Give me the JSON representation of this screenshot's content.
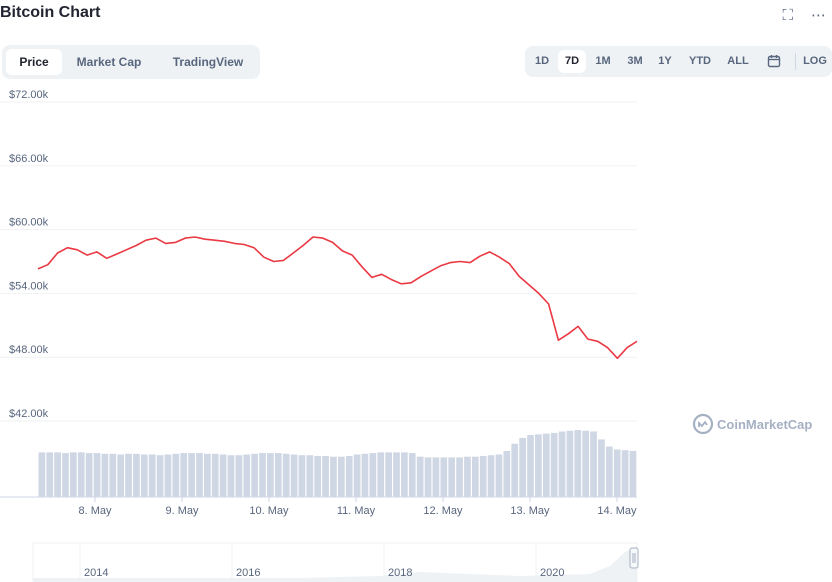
{
  "header": {
    "title": "Bitcoin Chart",
    "icons": [
      "fullscreen-icon",
      "more-icon"
    ]
  },
  "tabs": [
    {
      "label": "Price",
      "active": true
    },
    {
      "label": "Market Cap",
      "active": false
    },
    {
      "label": "TradingView",
      "active": false
    }
  ],
  "ranges": [
    {
      "label": "1D",
      "active": false
    },
    {
      "label": "7D",
      "active": true
    },
    {
      "label": "1M",
      "active": false
    },
    {
      "label": "3M",
      "active": false
    },
    {
      "label": "1Y",
      "active": false
    },
    {
      "label": "YTD",
      "active": false
    },
    {
      "label": "ALL",
      "active": false
    }
  ],
  "calendar_icon": "calendar-icon",
  "log_label": "LOG",
  "watermark": "CoinMarketCap",
  "colors": {
    "line": "#ea3943",
    "volume": "#cfd6e4",
    "grid": "#eff2f5",
    "axis_text": "#58667e"
  },
  "chart_data": {
    "type": "line",
    "series": [
      {
        "x": [
          "7 May 00:00",
          "7 May 03:00",
          "7 May 06:00",
          "7 May 09:00",
          "7 May 12:00",
          "7 May 15:00",
          "7 May 18:00",
          "7 May 21:00",
          "8 May 00:00",
          "8 May 03:00",
          "8 May 06:00",
          "8 May 09:00",
          "8 May 12:00",
          "8 May 15:00",
          "8 May 18:00",
          "8 May 21:00",
          "9 May 00:00",
          "9 May 03:00",
          "9 May 06:00",
          "9 May 09:00",
          "9 May 12:00",
          "9 May 15:00",
          "9 May 18:00",
          "9 May 21:00",
          "10 May 00:00",
          "10 May 03:00",
          "10 May 06:00",
          "10 May 09:00",
          "10 May 12:00",
          "10 May 15:00",
          "10 May 18:00",
          "10 May 21:00",
          "11 May 00:00",
          "11 May 03:00",
          "11 May 06:00",
          "11 May 09:00",
          "11 May 12:00",
          "11 May 15:00",
          "11 May 18:00",
          "11 May 21:00",
          "12 May 00:00",
          "12 May 03:00",
          "12 May 06:00",
          "12 May 09:00",
          "12 May 12:00",
          "12 May 15:00",
          "12 May 18:00",
          "12 May 21:00",
          "13 May 00:00",
          "13 May 03:00",
          "13 May 06:00",
          "13 May 09:00",
          "13 May 12:00",
          "13 May 15:00",
          "13 May 18:00",
          "13 May 21:00",
          "14 May 00:00",
          "14 May 03:00",
          "14 May 06:00",
          "14 May 09:00",
          "14 May 12:00",
          "14 May 15:00"
        ],
        "values": [
          56300,
          56700,
          57800,
          58300,
          58100,
          57600,
          57900,
          57300,
          57700,
          58100,
          58500,
          59000,
          59200,
          58700,
          58800,
          59200,
          59300,
          59100,
          59000,
          58900,
          58700,
          58600,
          58300,
          57400,
          57000,
          57100,
          57800,
          58500,
          59300,
          59200,
          58800,
          58000,
          57600,
          56500,
          55500,
          55800,
          55300,
          54900,
          55000,
          55600,
          56100,
          56600,
          56900,
          57000,
          56900,
          57500,
          57900,
          57400,
          56800,
          55600,
          54800,
          54000,
          53000,
          49600,
          50200,
          50900,
          49700,
          49500,
          48900,
          47900,
          48900,
          49500
        ]
      }
    ],
    "yticks": [
      "$42.00k",
      "$48.00k",
      "$54.00k",
      "$60.00k",
      "$66.00k",
      "$72.00k"
    ],
    "ylim": [
      42000,
      72000
    ],
    "xticks": [
      "8. May",
      "9. May",
      "10. May",
      "11. May",
      "12. May",
      "13. May",
      "14. May"
    ],
    "volume_relative": [
      0.62,
      0.62,
      0.62,
      0.61,
      0.62,
      0.62,
      0.61,
      0.61,
      0.6,
      0.6,
      0.59,
      0.6,
      0.6,
      0.59,
      0.59,
      0.58,
      0.59,
      0.6,
      0.61,
      0.61,
      0.61,
      0.6,
      0.6,
      0.59,
      0.58,
      0.58,
      0.59,
      0.6,
      0.61,
      0.61,
      0.61,
      0.6,
      0.59,
      0.58,
      0.58,
      0.57,
      0.57,
      0.56,
      0.56,
      0.57,
      0.59,
      0.6,
      0.61,
      0.62,
      0.62,
      0.62,
      0.62,
      0.61,
      0.56,
      0.55,
      0.55,
      0.55,
      0.55,
      0.55,
      0.56,
      0.56,
      0.57,
      0.58,
      0.59,
      0.64,
      0.74,
      0.82,
      0.86,
      0.87,
      0.88,
      0.89,
      0.91,
      0.92,
      0.93,
      0.92,
      0.91,
      0.8,
      0.7,
      0.66,
      0.65,
      0.64
    ],
    "navigator": {
      "xticks": [
        "2014",
        "2016",
        "2018",
        "2020"
      ]
    },
    "grid": true,
    "legend": "none"
  }
}
